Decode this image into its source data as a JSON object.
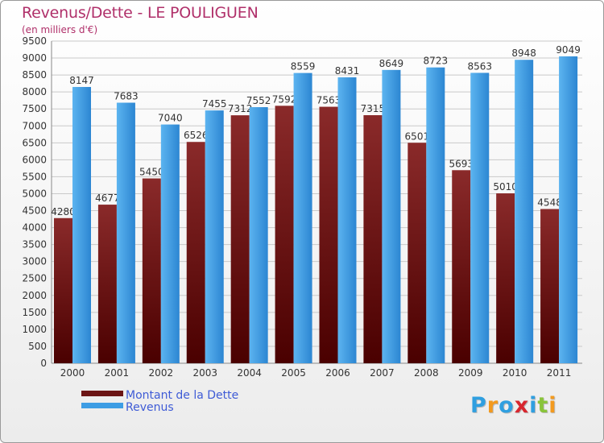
{
  "header": {
    "title": "Revenus/Dette - LE POULIGUEN",
    "subtitle": "(en milliers d'€)"
  },
  "chart_data": {
    "type": "bar",
    "title": "Revenus/Dette - LE POULIGUEN",
    "subtitle": "(en milliers d'€)",
    "categories": [
      "2000",
      "2001",
      "2002",
      "2003",
      "2004",
      "2005",
      "2006",
      "2007",
      "2008",
      "2009",
      "2010",
      "2011"
    ],
    "series": [
      {
        "name": "Montant de la Dette",
        "color": "#6b1414",
        "values": [
          4280,
          4677,
          5450,
          6526,
          7312,
          7592,
          7563,
          7315,
          6501,
          5693,
          5010,
          4548
        ]
      },
      {
        "name": "Revenus",
        "color": "#3d9de4",
        "values": [
          8147,
          7683,
          7040,
          7455,
          7552,
          8559,
          8431,
          8649,
          8723,
          8563,
          8948,
          9049
        ]
      }
    ],
    "yticks": [
      0,
      500,
      1000,
      1500,
      2000,
      2500,
      3000,
      3500,
      4000,
      4500,
      5000,
      5500,
      6000,
      6500,
      7000,
      7500,
      8000,
      8500,
      9000,
      9500
    ],
    "ylim": [
      0,
      9500
    ],
    "grid": true,
    "legend": "bottom-left"
  },
  "legend": {
    "items": [
      {
        "label": "Montant de la Dette",
        "color": "#6b1414"
      },
      {
        "label": "Revenus",
        "color": "#3d9de4"
      }
    ]
  },
  "logo": {
    "text": "Proxiti",
    "letters": [
      {
        "char": "P",
        "color": "#2f9fe0"
      },
      {
        "char": "r",
        "color": "#f39a1e"
      },
      {
        "char": "o",
        "color": "#2f9fe0"
      },
      {
        "char": "x",
        "color": "#d8262e"
      },
      {
        "char": "i",
        "color": "#2f9fe0"
      },
      {
        "char": "t",
        "color": "#89c43a"
      },
      {
        "char": "i",
        "color": "#f39a1e"
      }
    ]
  }
}
